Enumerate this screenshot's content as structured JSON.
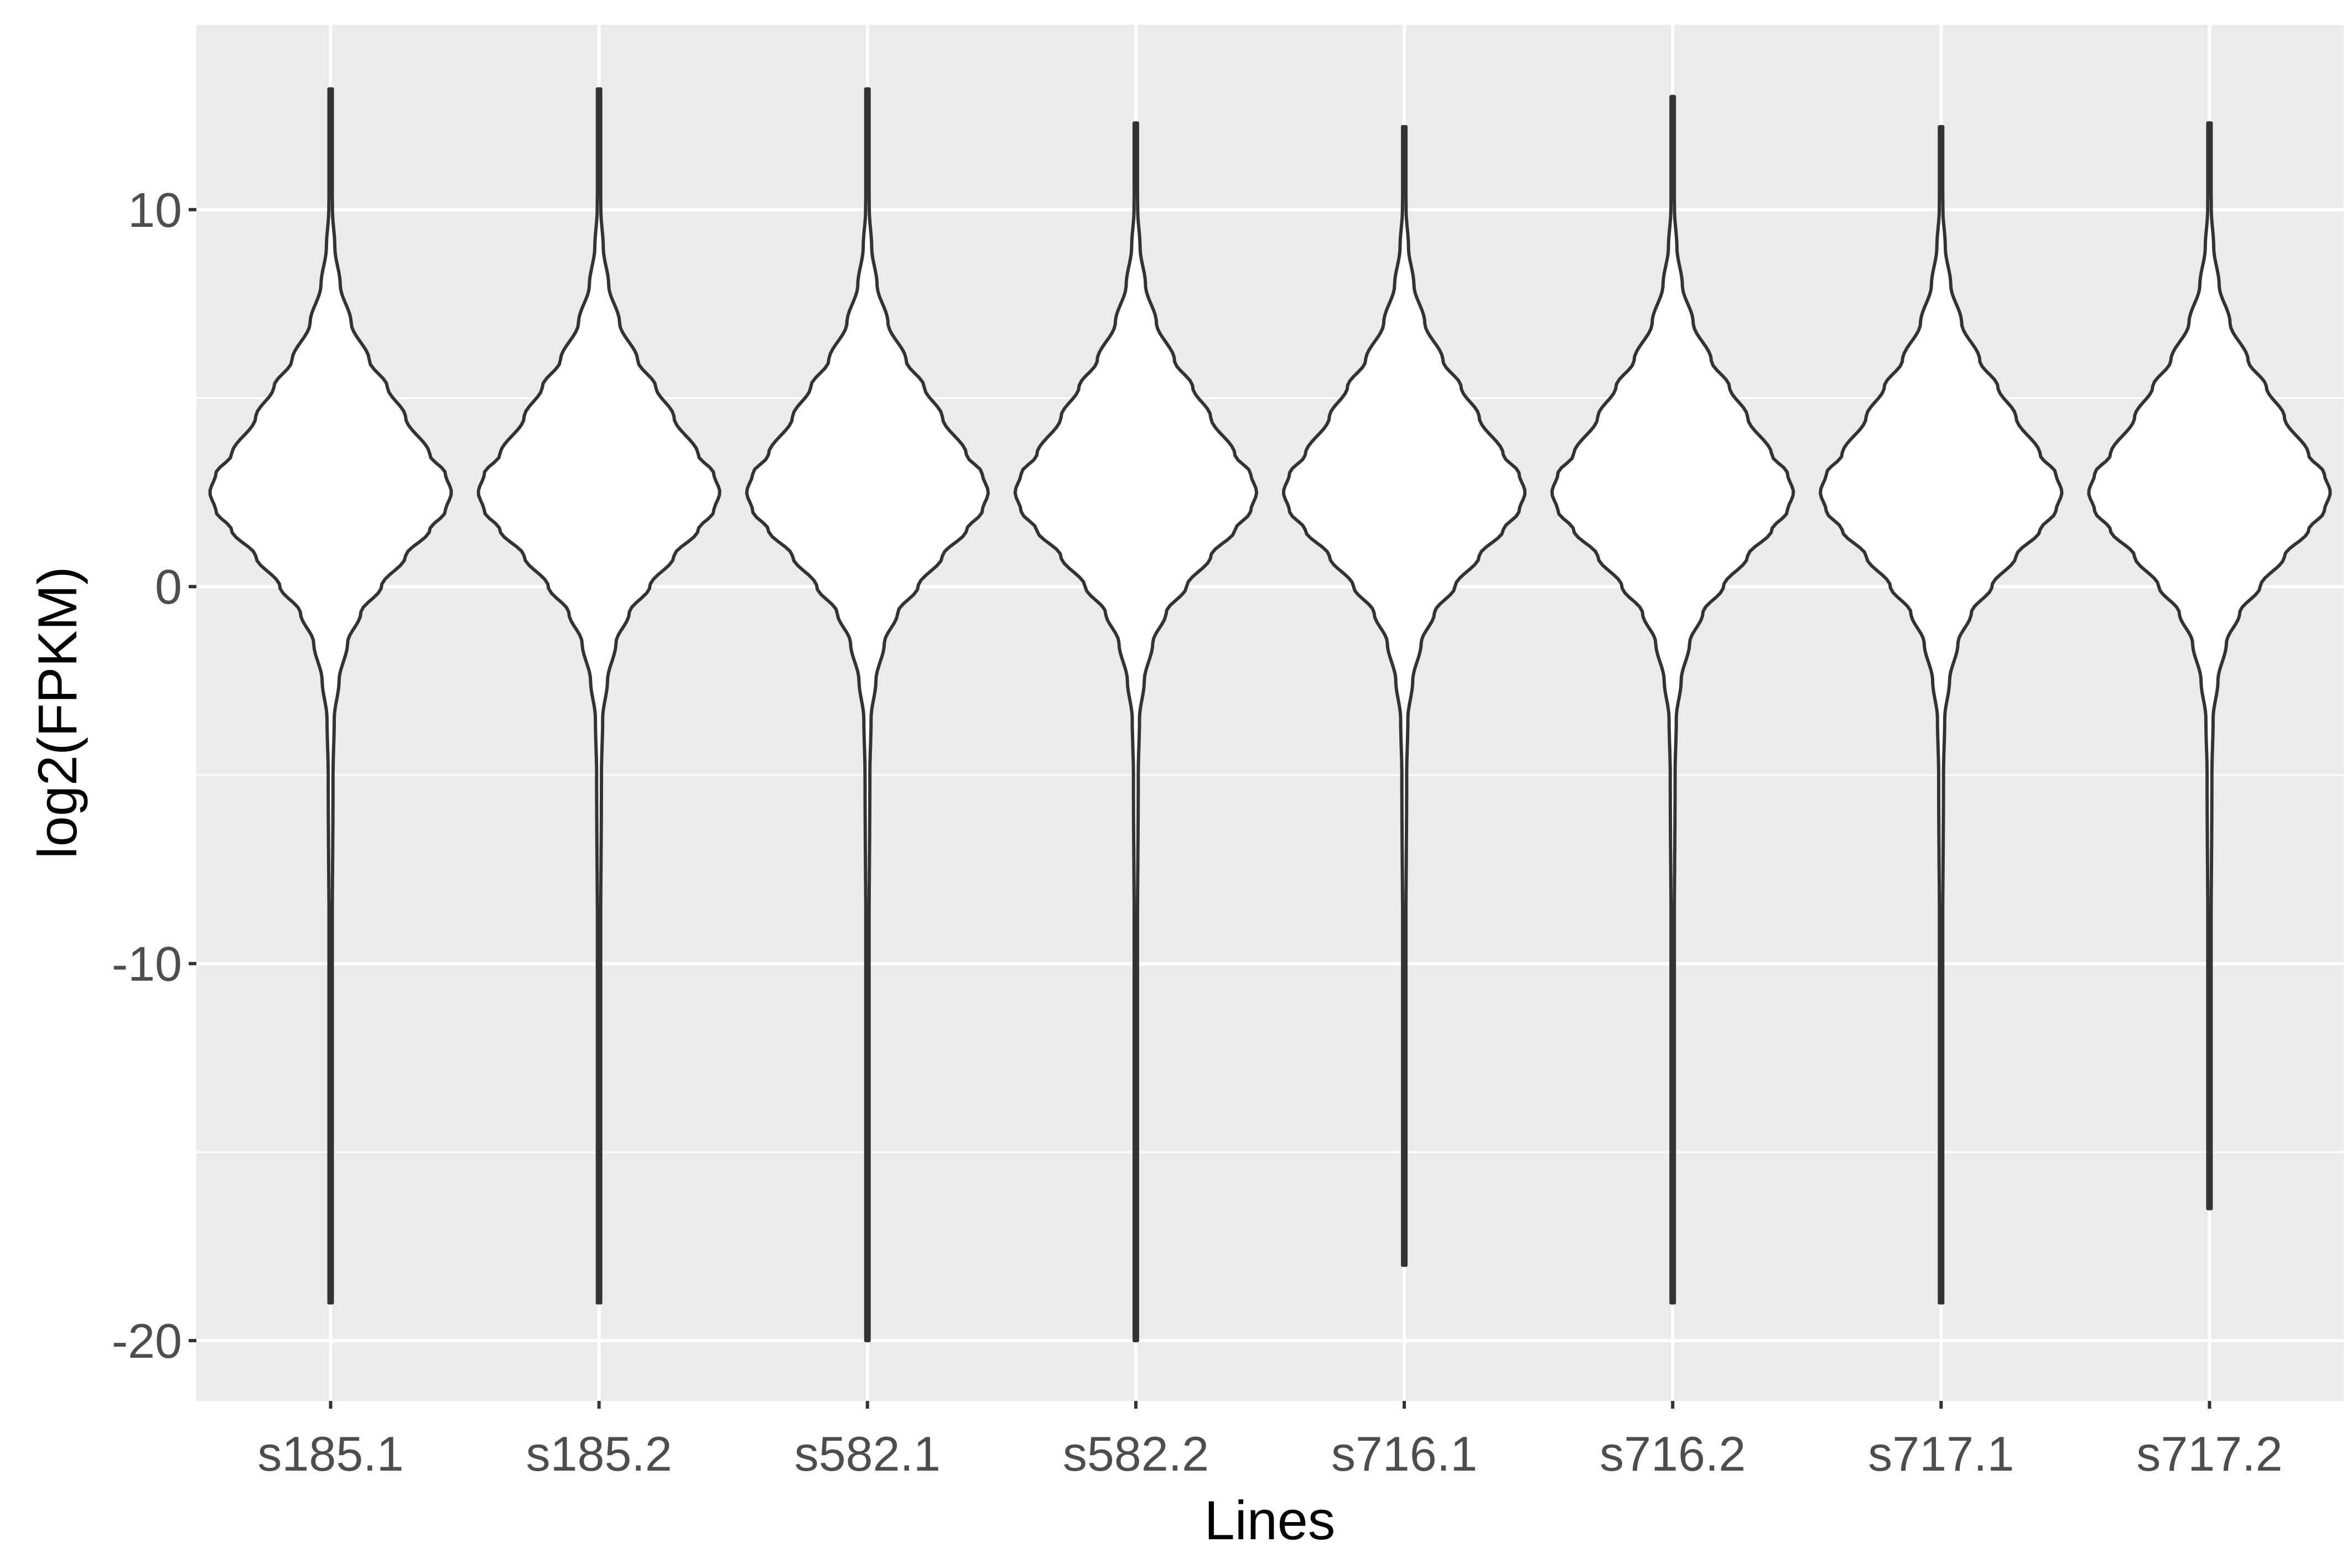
{
  "chart_data": {
    "type": "violin",
    "xlabel": "Lines",
    "ylabel": "log2(FPKM)",
    "ylim": [
      -21.6,
      14.9
    ],
    "y_ticks": [
      -20,
      -10,
      0,
      10
    ],
    "grid": true,
    "legend": "none",
    "categories": [
      "s185.1",
      "s185.2",
      "s582.1",
      "s582.2",
      "s716.1",
      "s716.2",
      "s717.1",
      "s717.2"
    ],
    "series": [
      {
        "category": "s185.1",
        "min": -19.0,
        "max": 13.2,
        "mode": 2.5
      },
      {
        "category": "s185.2",
        "min": -19.0,
        "max": 13.2,
        "mode": 2.5
      },
      {
        "category": "s582.1",
        "min": -20.0,
        "max": 13.2,
        "mode": 2.5
      },
      {
        "category": "s582.2",
        "min": -20.0,
        "max": 12.3,
        "mode": 2.5
      },
      {
        "category": "s716.1",
        "min": -18.0,
        "max": 12.2,
        "mode": 2.5
      },
      {
        "category": "s716.2",
        "min": -19.0,
        "max": 13.0,
        "mode": 2.5
      },
      {
        "category": "s717.1",
        "min": -19.0,
        "max": 12.2,
        "mode": 2.5
      },
      {
        "category": "s717.2",
        "min": -16.5,
        "max": 12.3,
        "mode": 2.5
      }
    ],
    "density_profile": [
      {
        "y": -10.0,
        "rel_width": 0.012
      },
      {
        "y": -5.0,
        "rel_width": 0.02
      },
      {
        "y": -3.5,
        "rel_width": 0.03
      },
      {
        "y": -2.5,
        "rel_width": 0.07
      },
      {
        "y": -1.5,
        "rel_width": 0.14
      },
      {
        "y": -0.7,
        "rel_width": 0.25
      },
      {
        "y": 0.0,
        "rel_width": 0.42
      },
      {
        "y": 0.8,
        "rel_width": 0.62
      },
      {
        "y": 1.5,
        "rel_width": 0.82
      },
      {
        "y": 2.0,
        "rel_width": 0.95
      },
      {
        "y": 2.5,
        "rel_width": 1.0
      },
      {
        "y": 3.0,
        "rel_width": 0.95
      },
      {
        "y": 3.5,
        "rel_width": 0.82
      },
      {
        "y": 4.5,
        "rel_width": 0.62
      },
      {
        "y": 5.3,
        "rel_width": 0.47
      },
      {
        "y": 6.0,
        "rel_width": 0.32
      },
      {
        "y": 7.0,
        "rel_width": 0.17
      },
      {
        "y": 8.0,
        "rel_width": 0.08
      },
      {
        "y": 9.0,
        "rel_width": 0.035
      },
      {
        "y": 10.0,
        "rel_width": 0.015
      }
    ],
    "colors": {
      "panel": "#ebebeb",
      "grid": "#ffffff",
      "violin_fill": "#ffffff",
      "violin_stroke": "#333333"
    }
  }
}
